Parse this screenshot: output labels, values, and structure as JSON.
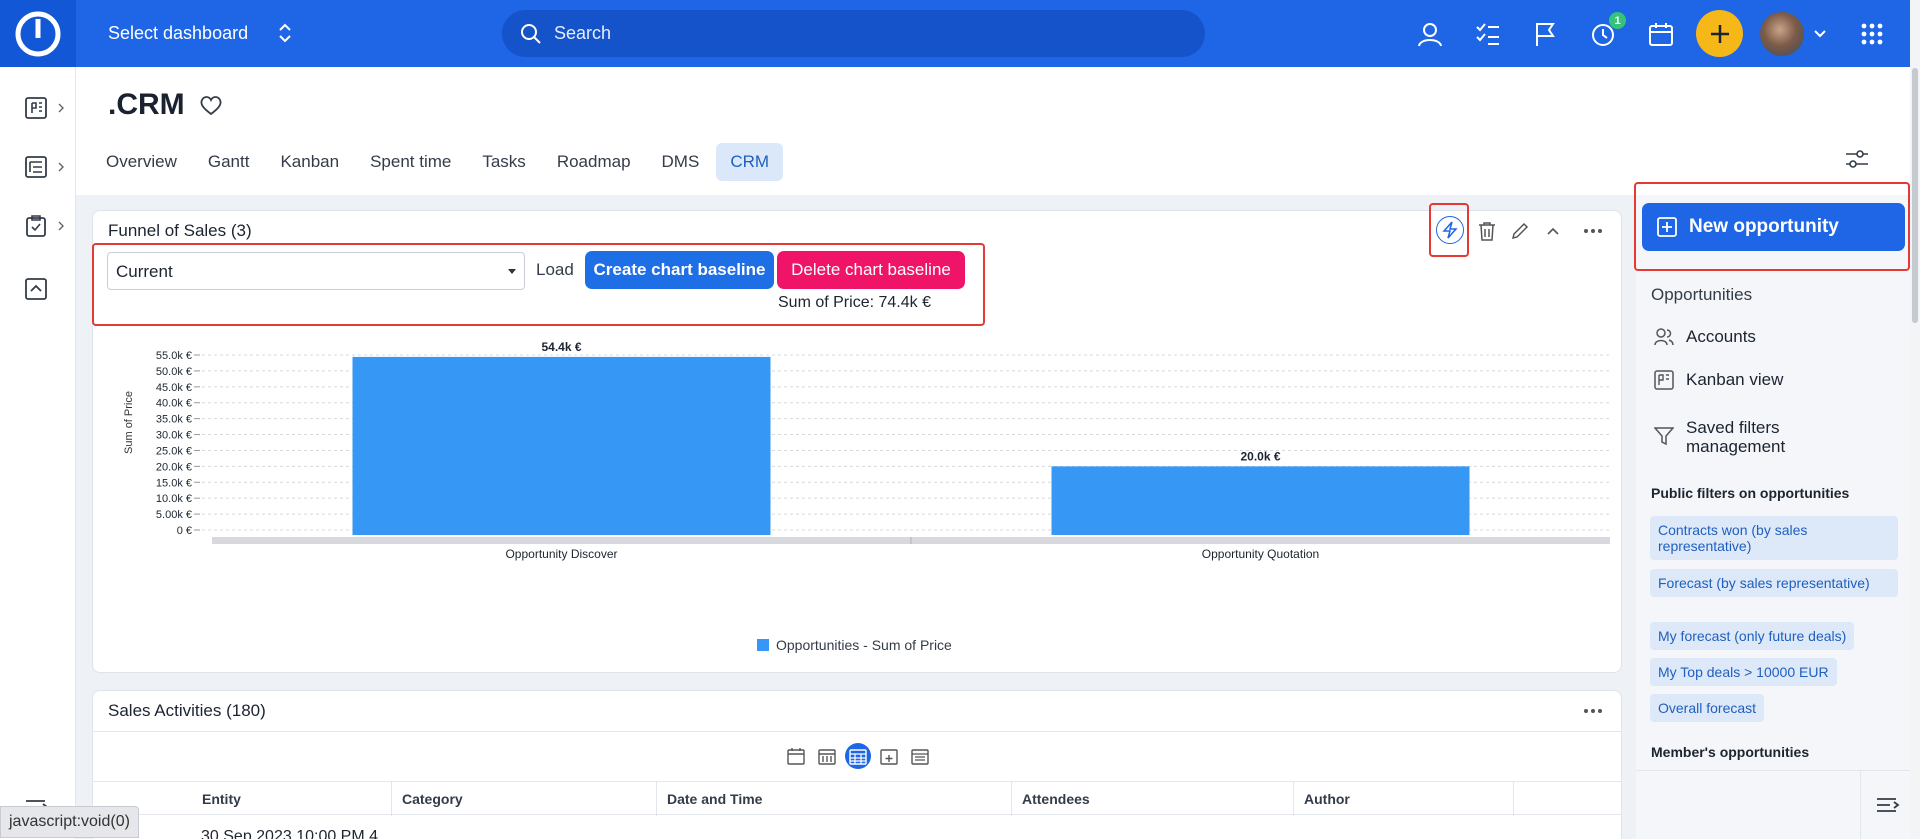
{
  "topbar": {
    "select_dashboard": "Select dashboard",
    "search_placeholder": "Search",
    "notification_count": "1"
  },
  "page": {
    "title": ".CRM",
    "tabs": [
      {
        "label": "Overview"
      },
      {
        "label": "Gantt"
      },
      {
        "label": "Kanban"
      },
      {
        "label": "Spent time"
      },
      {
        "label": "Tasks"
      },
      {
        "label": "Roadmap"
      },
      {
        "label": "DMS"
      },
      {
        "label": "CRM",
        "active": true
      }
    ]
  },
  "funnel": {
    "title": "Funnel of Sales (3)",
    "select_value": "Current",
    "load_label": "Load",
    "create_baseline": "Create chart baseline",
    "delete_baseline": "Delete chart baseline",
    "sum_label": "Sum of Price: 74.4k €"
  },
  "chart_data": {
    "type": "bar",
    "categories": [
      "Opportunity Discover",
      "Opportunity Quotation"
    ],
    "series": [
      {
        "name": "Opportunities - Sum of Price",
        "values": [
          54.4,
          20.0
        ],
        "labels": [
          "54.4k €",
          "20.0k €"
        ],
        "color": "#3797f5"
      }
    ],
    "ylabel": "Sum of Price",
    "ylim": [
      0,
      55
    ],
    "yticks": [
      "0 €",
      "5.00k €",
      "10.0k €",
      "15.0k €",
      "20.0k €",
      "25.0k €",
      "30.0k €",
      "35.0k €",
      "40.0k €",
      "45.0k €",
      "50.0k €",
      "55.0k €"
    ],
    "ytick_values": [
      0,
      5,
      10,
      15,
      20,
      25,
      30,
      35,
      40,
      45,
      50,
      55
    ],
    "grid": true,
    "legend": "bottom"
  },
  "activities": {
    "title": "Sales Activities (180)",
    "columns": [
      "Entity",
      "Category",
      "Date and Time",
      "Attendees",
      "Author"
    ],
    "first_row_partial": "30 Sep 2023 10:00 PM 4"
  },
  "sidebar": {
    "new_button": "New opportunity",
    "heading": "Opportunities",
    "items": [
      {
        "label": "Accounts",
        "icon": "accounts-icon"
      },
      {
        "label": "Kanban view",
        "icon": "kanban-icon"
      },
      {
        "label": "Saved filters management",
        "icon": "filter-icon"
      }
    ],
    "public_filters_heading": "Public filters on opportunities",
    "public_filters": [
      "Contracts won (by sales representative)",
      "Forecast (by sales representative)",
      "My forecast (only future deals)",
      "My Top deals > 10000 EUR",
      "Overall forecast"
    ],
    "members_heading": "Member's opportunities"
  },
  "statusbar": {
    "text": "javascript:void(0)"
  },
  "colors": {
    "brand": "#1e66e6",
    "danger": "#ef1467",
    "accent_yellow": "#f5b818",
    "bar": "#3797f5"
  }
}
